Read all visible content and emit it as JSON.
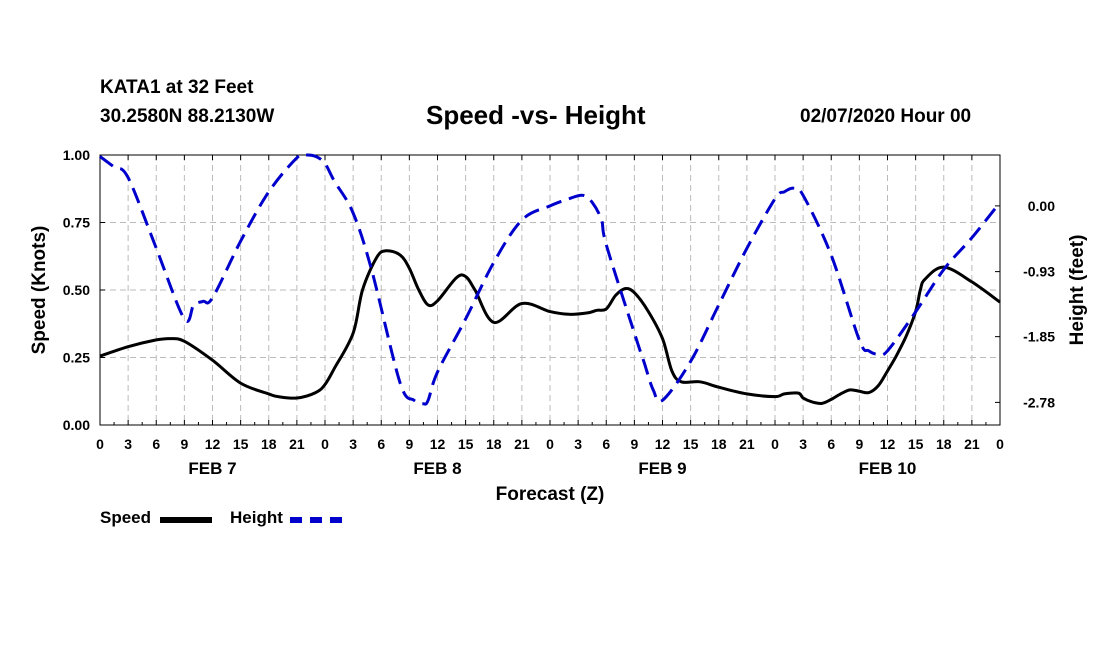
{
  "header": {
    "station": "KATA1 at 32 Feet",
    "coords": "30.2580N 88.2130W",
    "title": "Speed -vs- Height",
    "date": "02/07/2020 Hour 00"
  },
  "legend": {
    "speed_label": "Speed",
    "height_label": "Height"
  },
  "colors": {
    "speed": "#000000",
    "height": "#0000cc",
    "grid": "#bbbbbb"
  },
  "chart_data": {
    "type": "line",
    "title": "Speed -vs- Height",
    "xlabel": "Forecast (Z)",
    "ylabel": "Speed (Knots)",
    "y2label": "Height (feet)",
    "xlim": [
      0,
      96
    ],
    "ylim": [
      0,
      1
    ],
    "y2lim": [
      -3.1,
      0.72
    ],
    "x_ticks": [
      0,
      3,
      6,
      9,
      12,
      15,
      18,
      21,
      24,
      27,
      30,
      33,
      36,
      39,
      42,
      45,
      48,
      51,
      54,
      57,
      60,
      63,
      66,
      69,
      72,
      75,
      78,
      81,
      84,
      87,
      90,
      93,
      96
    ],
    "x_tick_labels": [
      "0",
      "3",
      "6",
      "9",
      "12",
      "15",
      "18",
      "21",
      "0",
      "3",
      "6",
      "9",
      "12",
      "15",
      "18",
      "21",
      "0",
      "3",
      "6",
      "9",
      "12",
      "15",
      "18",
      "21",
      "0",
      "3",
      "6",
      "9",
      "12",
      "15",
      "18",
      "21",
      "0"
    ],
    "day_labels": [
      {
        "x": 12,
        "label": "FEB 7"
      },
      {
        "x": 36,
        "label": "FEB 8"
      },
      {
        "x": 60,
        "label": "FEB 9"
      },
      {
        "x": 84,
        "label": "FEB 10"
      }
    ],
    "y_ticks": [
      0,
      0.25,
      0.5,
      0.75,
      1.0
    ],
    "y_tick_labels": [
      "0.00",
      "0.25",
      "0.50",
      "0.75",
      "1.00"
    ],
    "y2_ticks": [
      0.0,
      -0.93,
      -1.85,
      -2.78
    ],
    "y2_tick_labels": [
      "0.00",
      "-0.93",
      "-1.85",
      "-2.78"
    ],
    "series": [
      {
        "name": "Speed",
        "axis": "left",
        "style": "solid",
        "x": [
          0,
          3,
          6,
          7.5,
          9,
          12,
          15,
          18,
          19,
          21,
          23,
          24,
          25,
          27,
          28,
          29.5,
          30.5,
          32,
          33,
          34,
          35,
          36,
          38,
          39,
          40,
          42,
          45,
          48,
          50,
          52,
          53,
          54,
          55,
          56,
          57,
          58.5,
          60,
          61,
          62,
          64,
          66,
          69,
          72,
          73,
          74.5,
          75,
          76,
          77,
          78,
          79,
          80,
          81,
          82,
          83,
          84,
          85,
          86,
          87,
          87.5,
          88,
          90,
          93,
          96
        ],
        "y": [
          0.255,
          0.29,
          0.315,
          0.32,
          0.31,
          0.24,
          0.155,
          0.115,
          0.105,
          0.1,
          0.12,
          0.15,
          0.21,
          0.34,
          0.5,
          0.62,
          0.645,
          0.63,
          0.58,
          0.5,
          0.445,
          0.46,
          0.545,
          0.55,
          0.5,
          0.38,
          0.45,
          0.42,
          0.41,
          0.415,
          0.425,
          0.43,
          0.48,
          0.505,
          0.49,
          0.42,
          0.32,
          0.2,
          0.16,
          0.16,
          0.14,
          0.115,
          0.105,
          0.115,
          0.118,
          0.1,
          0.085,
          0.08,
          0.095,
          0.115,
          0.13,
          0.125,
          0.12,
          0.145,
          0.2,
          0.26,
          0.33,
          0.42,
          0.5,
          0.54,
          0.585,
          0.53,
          0.455
        ]
      },
      {
        "name": "Height",
        "axis": "right",
        "style": "dashed",
        "x": [
          0,
          1.5,
          3,
          6,
          9,
          10,
          11,
          12,
          15,
          18,
          21,
          22,
          23,
          24,
          25,
          27,
          29,
          32,
          33.5,
          34.5,
          35,
          36,
          39,
          42,
          45,
          48,
          50,
          51.5,
          52.5,
          53.5,
          54,
          57,
          58,
          59,
          60,
          63,
          66,
          69,
          72,
          73,
          74,
          75,
          78,
          81,
          82,
          83,
          84,
          87,
          90,
          93,
          96
        ],
        "y": [
          0.7,
          0.55,
          0.4,
          -0.6,
          -1.6,
          -1.4,
          -1.35,
          -1.3,
          -0.5,
          0.2,
          0.68,
          0.72,
          0.7,
          0.6,
          0.35,
          -0.1,
          -0.92,
          -2.5,
          -2.75,
          -2.8,
          -2.75,
          -2.35,
          -1.6,
          -0.8,
          -0.2,
          0.0,
          0.1,
          0.15,
          0.05,
          -0.2,
          -0.55,
          -1.8,
          -2.2,
          -2.6,
          -2.75,
          -2.2,
          -1.4,
          -0.6,
          0.1,
          0.2,
          0.25,
          0.15,
          -0.7,
          -1.9,
          -2.05,
          -2.1,
          -2.05,
          -1.5,
          -0.9,
          -0.45,
          0.05
        ]
      }
    ]
  }
}
